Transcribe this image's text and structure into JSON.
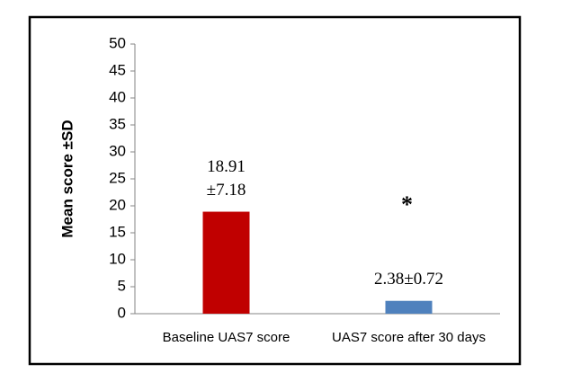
{
  "chart_data": {
    "type": "bar",
    "y_label": "Mean score ±SD",
    "categories": [
      "Baseline UAS7 score",
      "UAS7 score after 30 days"
    ],
    "series": [
      {
        "colors": [
          "#c00000",
          "#4f81bd"
        ],
        "values": [
          18.91,
          2.38
        ],
        "value_labels": [
          [
            "18.91",
            "±7.18"
          ],
          [
            "2.38±0.72"
          ]
        ]
      }
    ],
    "annotations": [
      "*"
    ],
    "ylim": [
      0,
      50
    ],
    "yticks": [
      0,
      5,
      10,
      15,
      20,
      25,
      30,
      35,
      40,
      45,
      50
    ],
    "grid": false
  }
}
